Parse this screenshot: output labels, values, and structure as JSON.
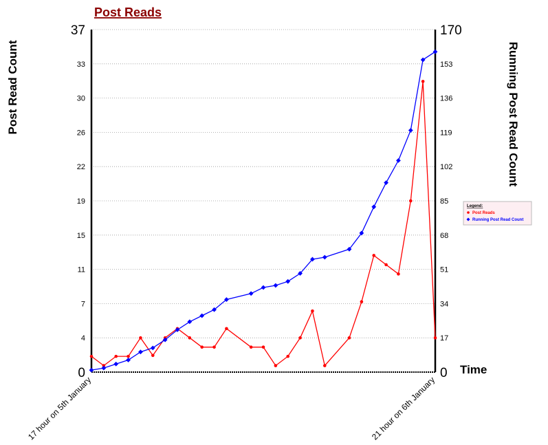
{
  "chart_data": {
    "type": "line",
    "title": "Post Reads",
    "ylabel": "Post Read Count",
    "y2label": "Running Post Read Count",
    "xlabel": "Time",
    "x_start_label": "17 hour on 5th January",
    "x_end_label": "21 hour on 6th January",
    "ylim": [
      0,
      37
    ],
    "y2lim": [
      0,
      170
    ],
    "yticks": [
      "0",
      "4",
      "7",
      "11",
      "15",
      "19",
      "22",
      "26",
      "30",
      "33",
      "37"
    ],
    "y2ticks": [
      "0",
      "17",
      "34",
      "51",
      "68",
      "85",
      "102",
      "119",
      "136",
      "153",
      "170"
    ],
    "legend": {
      "title": "Legend:",
      "position": "right"
    },
    "grid": "horizontal-dotted",
    "series": [
      {
        "name": "Post Reads",
        "axis": "left",
        "color": "#ff0000",
        "marker": "circle",
        "points": [
          [
            0,
            1.7
          ],
          [
            1,
            0.7
          ],
          [
            2,
            1.7
          ],
          [
            3,
            1.7
          ],
          [
            4,
            3.7
          ],
          [
            5,
            1.8
          ],
          [
            6,
            3.7
          ],
          [
            7,
            4.7
          ],
          [
            8,
            3.7
          ],
          [
            9,
            2.7
          ],
          [
            10,
            2.7
          ],
          [
            11,
            4.7
          ],
          [
            13,
            2.7
          ],
          [
            14,
            2.7
          ],
          [
            15,
            0.7
          ],
          [
            16,
            1.7
          ],
          [
            17,
            3.7
          ],
          [
            18,
            6.6
          ],
          [
            19,
            0.7
          ],
          [
            21,
            3.7
          ],
          [
            22,
            7.6
          ],
          [
            23,
            12.6
          ],
          [
            24,
            11.6
          ],
          [
            25,
            10.6
          ],
          [
            26,
            18.5
          ],
          [
            27,
            31.4
          ],
          [
            28,
            3.7
          ]
        ]
      },
      {
        "name": "Running Post Read Count",
        "axis": "right",
        "color": "#0000ff",
        "marker": "diamond",
        "points": [
          [
            0,
            1
          ],
          [
            1,
            2
          ],
          [
            2,
            4
          ],
          [
            3,
            6
          ],
          [
            4,
            10
          ],
          [
            5,
            12
          ],
          [
            6,
            16
          ],
          [
            7,
            21
          ],
          [
            8,
            25
          ],
          [
            9,
            28
          ],
          [
            10,
            31
          ],
          [
            11,
            36
          ],
          [
            13,
            39
          ],
          [
            14,
            42
          ],
          [
            15,
            43
          ],
          [
            16,
            45
          ],
          [
            17,
            49
          ],
          [
            18,
            56
          ],
          [
            19,
            57
          ],
          [
            21,
            61
          ],
          [
            22,
            69
          ],
          [
            23,
            82
          ],
          [
            24,
            94
          ],
          [
            25,
            105
          ],
          [
            26,
            120
          ],
          [
            27,
            155
          ],
          [
            28,
            159
          ]
        ]
      }
    ]
  }
}
